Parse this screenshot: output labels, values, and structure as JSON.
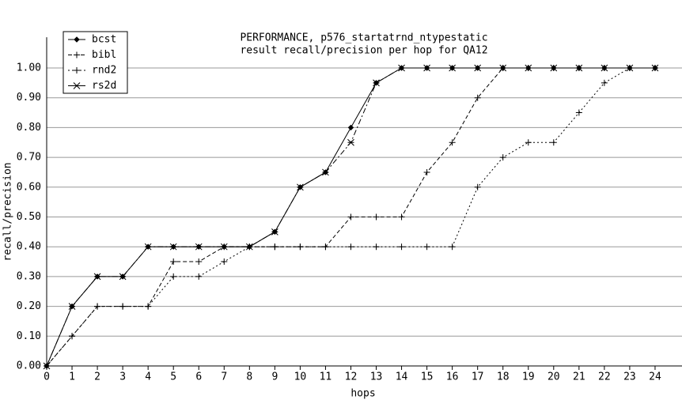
{
  "chart_data": {
    "type": "line",
    "title": [
      "PERFORMANCE, p576_startatrnd_ntypestatic",
      "result recall/precision per hop for QA12"
    ],
    "xlabel": "hops",
    "ylabel": "recall/precision",
    "x": [
      0,
      1,
      2,
      3,
      4,
      5,
      6,
      7,
      8,
      9,
      10,
      11,
      12,
      13,
      14,
      15,
      16,
      17,
      18,
      19,
      20,
      21,
      22,
      23,
      24
    ],
    "xlim": [
      0,
      25
    ],
    "xticks": [
      0,
      1,
      2,
      3,
      4,
      5,
      6,
      7,
      8,
      9,
      10,
      11,
      12,
      13,
      14,
      15,
      16,
      17,
      18,
      19,
      20,
      21,
      22,
      23,
      24
    ],
    "ylim": [
      0,
      1.05
    ],
    "yticks": [
      {
        "value": 0,
        "label": "0.00"
      },
      {
        "value": 0.1,
        "label": "0.10"
      },
      {
        "value": 0.2,
        "label": "0.20"
      },
      {
        "value": 0.3,
        "label": "0.30"
      },
      {
        "value": 0.4,
        "label": "0.40"
      },
      {
        "value": 0.5,
        "label": "0.50"
      },
      {
        "value": 0.6,
        "label": "0.60"
      },
      {
        "value": 0.7,
        "label": "0.70"
      },
      {
        "value": 0.8,
        "label": "0.80"
      },
      {
        "value": 0.9,
        "label": "0.90"
      },
      {
        "value": 1,
        "label": "1.00"
      }
    ],
    "grid": true,
    "legend": "upper left",
    "series": [
      {
        "name": "bcst",
        "color": "#000000",
        "line_style": "solid",
        "marker": "dot",
        "values": [
          0,
          0.2,
          0.3,
          0.3,
          0.4,
          0.4,
          0.4,
          0.4,
          0.4,
          0.45,
          0.6,
          0.65,
          0.8,
          0.95,
          1,
          1,
          1,
          1,
          1,
          1,
          1,
          1,
          1,
          1,
          1
        ]
      },
      {
        "name": "bibl",
        "color": "#000000",
        "line_style": "dashed",
        "marker": "plus",
        "values": [
          0,
          0.1,
          0.2,
          0.2,
          0.2,
          0.35,
          0.35,
          0.4,
          0.4,
          0.4,
          0.4,
          0.4,
          0.5,
          0.5,
          0.5,
          0.65,
          0.75,
          0.9,
          1,
          1,
          1,
          1,
          1,
          1,
          1
        ]
      },
      {
        "name": "rnd2",
        "color": "#000000",
        "line_style": "dotted",
        "marker": "plus",
        "values": [
          0,
          0.1,
          0.2,
          0.2,
          0.2,
          0.3,
          0.3,
          0.35,
          0.4,
          0.4,
          0.4,
          0.4,
          0.4,
          0.4,
          0.4,
          0.4,
          0.4,
          0.6,
          0.7,
          0.75,
          0.75,
          0.85,
          0.95,
          1,
          1
        ]
      },
      {
        "name": "rs2d",
        "color": "#000000",
        "line_style": "dashdot",
        "marker": "star",
        "values": [
          0,
          0.2,
          0.3,
          0.3,
          0.4,
          0.4,
          0.4,
          0.4,
          0.4,
          0.45,
          0.6,
          0.65,
          0.75,
          0.95,
          1,
          1,
          1,
          1,
          1,
          1,
          1,
          1,
          1,
          1,
          1
        ]
      }
    ]
  }
}
